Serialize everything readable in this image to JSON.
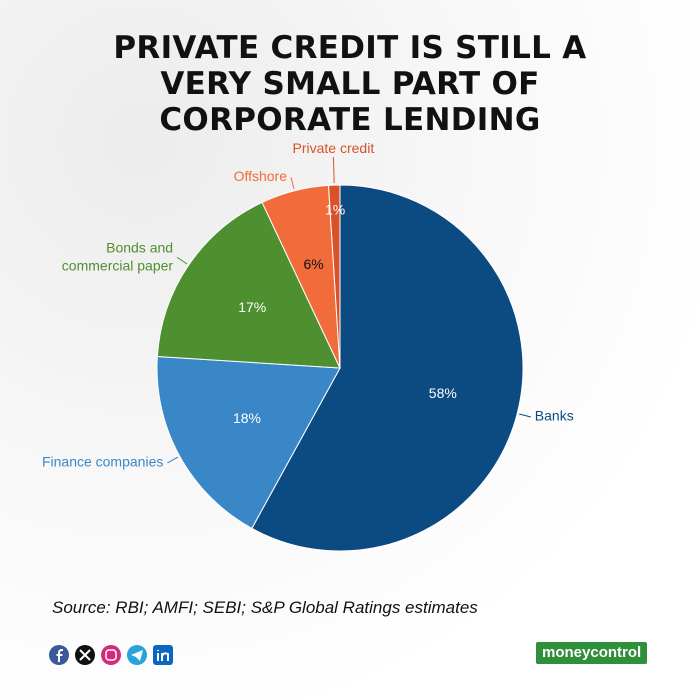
{
  "chart_data": {
    "type": "pie",
    "title": "PRIVATE CREDIT IS STILL A VERY SMALL PART OF CORPORATE LENDING",
    "categories": [
      "Banks",
      "Finance companies",
      "Bonds and commercial paper",
      "Offshore",
      "Private credit"
    ],
    "values": [
      58,
      18,
      17,
      6,
      1
    ],
    "value_labels": [
      "58%",
      "18%",
      "17%",
      "6%",
      "1%"
    ],
    "colors": [
      "#0c4a82",
      "#3a87c8",
      "#4e8f2f",
      "#f26b3a",
      "#d8532b"
    ],
    "source": "Source: RBI; AMFI; SEBI; S&P Global Ratings estimates"
  },
  "footer": {
    "brand": "moneycontrol"
  }
}
